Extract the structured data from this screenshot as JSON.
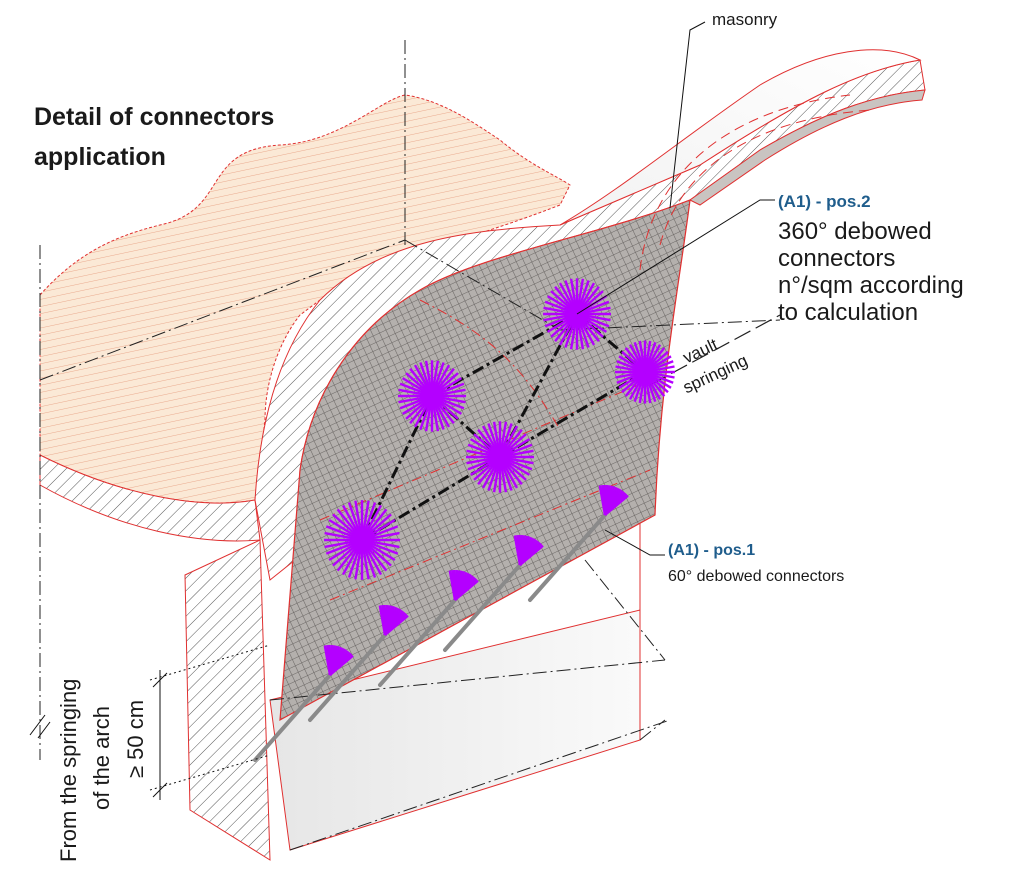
{
  "title": {
    "line1": "Detail of connectors",
    "line2": "application"
  },
  "labels": {
    "masonry": "masonry",
    "vault_springing_line1": "vault",
    "vault_springing_line2": "springing",
    "pos2_code": "(A1) - pos.2",
    "pos2_desc_line1": "360° debowed",
    "pos2_desc_line2": "connectors",
    "pos2_desc_line3": "n°/sqm according",
    "pos2_desc_line4": "to calculation",
    "pos1_code": "(A1) - pos.1",
    "pos1_desc": "60° debowed connectors",
    "dim_line1": "From the springing",
    "dim_line2": "of the arch",
    "dim_line3": "≥ 50 cm"
  },
  "colors": {
    "connector": "#b400ff",
    "outline": "#e03030",
    "floor_fill": "#fbe9d6",
    "mesh_fill": "#b0aca9",
    "label_blue": "#1f5d8c"
  }
}
